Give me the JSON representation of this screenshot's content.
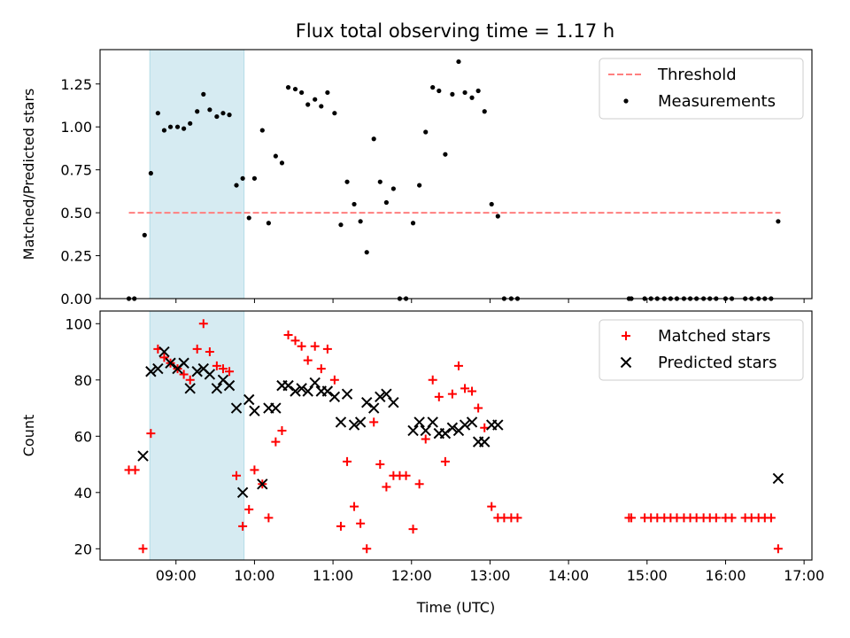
{
  "title": "Flux total observing time = 1.17 h",
  "chart_data": [
    {
      "type": "scatter",
      "ylabel": "Matched/Predicted stars",
      "xlim": [
        8.033,
        17.1
      ],
      "ylim": [
        0,
        1.45
      ],
      "yticks": [
        0.0,
        0.25,
        0.5,
        0.75,
        1.0,
        1.25
      ],
      "ytick_labels": [
        "0.00",
        "0.25",
        "0.50",
        "0.75",
        "1.00",
        "1.25"
      ],
      "highlight_span": {
        "x0": 8.667,
        "x1": 9.867,
        "color": "#add8e6"
      },
      "threshold": {
        "name": "Threshold",
        "y": 0.5,
        "x0": 8.4,
        "x1": 16.7,
        "color": "#ff7f7f",
        "style": "dashed"
      },
      "legend": {
        "position": "top-right",
        "entries": [
          "Threshold",
          "Measurements"
        ]
      },
      "series": [
        {
          "name": "Measurements",
          "marker": "dot",
          "color": "#000000",
          "points": [
            [
              8.4,
              0
            ],
            [
              8.47,
              0
            ],
            [
              8.6,
              0.37
            ],
            [
              8.68,
              0.73
            ],
            [
              8.77,
              1.08
            ],
            [
              8.85,
              0.98
            ],
            [
              8.93,
              1.0
            ],
            [
              9.02,
              1.0
            ],
            [
              9.1,
              0.99
            ],
            [
              9.18,
              1.02
            ],
            [
              9.27,
              1.09
            ],
            [
              9.35,
              1.19
            ],
            [
              9.43,
              1.1
            ],
            [
              9.52,
              1.06
            ],
            [
              9.6,
              1.08
            ],
            [
              9.68,
              1.07
            ],
            [
              9.77,
              0.66
            ],
            [
              9.85,
              0.7
            ],
            [
              9.93,
              0.47
            ],
            [
              10.0,
              0.7
            ],
            [
              10.1,
              0.98
            ],
            [
              10.18,
              0.44
            ],
            [
              10.27,
              0.83
            ],
            [
              10.35,
              0.79
            ],
            [
              10.43,
              1.23
            ],
            [
              10.52,
              1.22
            ],
            [
              10.6,
              1.2
            ],
            [
              10.68,
              1.13
            ],
            [
              10.77,
              1.16
            ],
            [
              10.85,
              1.12
            ],
            [
              10.93,
              1.2
            ],
            [
              11.02,
              1.08
            ],
            [
              11.1,
              0.43
            ],
            [
              11.18,
              0.68
            ],
            [
              11.27,
              0.55
            ],
            [
              11.35,
              0.45
            ],
            [
              11.43,
              0.27
            ],
            [
              11.52,
              0.93
            ],
            [
              11.6,
              0.68
            ],
            [
              11.68,
              0.56
            ],
            [
              11.77,
              0.64
            ],
            [
              11.85,
              0
            ],
            [
              11.93,
              0
            ],
            [
              12.02,
              0.44
            ],
            [
              12.1,
              0.66
            ],
            [
              12.18,
              0.97
            ],
            [
              12.27,
              1.23
            ],
            [
              12.35,
              1.21
            ],
            [
              12.43,
              0.84
            ],
            [
              12.52,
              1.19
            ],
            [
              12.6,
              1.38
            ],
            [
              12.68,
              1.2
            ],
            [
              12.77,
              1.17
            ],
            [
              12.85,
              1.21
            ],
            [
              12.93,
              1.09
            ],
            [
              13.02,
              0.55
            ],
            [
              13.1,
              0.48
            ],
            [
              13.18,
              0
            ],
            [
              13.27,
              0
            ],
            [
              13.35,
              0
            ],
            [
              14.77,
              0
            ],
            [
              14.8,
              0
            ],
            [
              14.97,
              0
            ],
            [
              15.05,
              0
            ],
            [
              15.13,
              0
            ],
            [
              15.22,
              0
            ],
            [
              15.3,
              0
            ],
            [
              15.38,
              0
            ],
            [
              15.47,
              0
            ],
            [
              15.55,
              0
            ],
            [
              15.63,
              0
            ],
            [
              15.72,
              0
            ],
            [
              15.8,
              0
            ],
            [
              15.88,
              0
            ],
            [
              16.0,
              0
            ],
            [
              16.08,
              0
            ],
            [
              16.25,
              0
            ],
            [
              16.33,
              0
            ],
            [
              16.42,
              0
            ],
            [
              16.5,
              0
            ],
            [
              16.58,
              0
            ],
            [
              16.67,
              0.45
            ]
          ]
        }
      ]
    },
    {
      "type": "scatter",
      "xlabel": "Time (UTC)",
      "ylabel": "Count",
      "xlim": [
        8.033,
        17.1
      ],
      "ylim": [
        16,
        104.5
      ],
      "xticks": [
        9,
        10,
        11,
        12,
        13,
        14,
        15,
        16,
        17
      ],
      "xtick_labels": [
        "09:00",
        "10:00",
        "11:00",
        "12:00",
        "13:00",
        "14:00",
        "15:00",
        "16:00",
        "17:00"
      ],
      "yticks": [
        20,
        40,
        60,
        80,
        100
      ],
      "ytick_labels": [
        "20",
        "40",
        "60",
        "80",
        "100"
      ],
      "highlight_span": {
        "x0": 8.667,
        "x1": 9.867,
        "color": "#add8e6"
      },
      "legend": {
        "position": "top-right",
        "entries": [
          "Matched stars",
          "Predicted stars"
        ]
      },
      "series": [
        {
          "name": "Matched stars",
          "marker": "plus",
          "color": "#ff0000",
          "points": [
            [
              8.4,
              48
            ],
            [
              8.48,
              48
            ],
            [
              8.58,
              20
            ],
            [
              8.68,
              61
            ],
            [
              8.77,
              91
            ],
            [
              8.85,
              88
            ],
            [
              8.93,
              86
            ],
            [
              9.02,
              84
            ],
            [
              9.1,
              82
            ],
            [
              9.18,
              80
            ],
            [
              9.27,
              91
            ],
            [
              9.35,
              100
            ],
            [
              9.43,
              90
            ],
            [
              9.52,
              85
            ],
            [
              9.6,
              84
            ],
            [
              9.68,
              83
            ],
            [
              9.77,
              46
            ],
            [
              9.85,
              28
            ],
            [
              9.93,
              34
            ],
            [
              10.0,
              48
            ],
            [
              10.1,
              43
            ],
            [
              10.18,
              31
            ],
            [
              10.27,
              58
            ],
            [
              10.35,
              62
            ],
            [
              10.43,
              96
            ],
            [
              10.52,
              94
            ],
            [
              10.6,
              92
            ],
            [
              10.68,
              87
            ],
            [
              10.77,
              92
            ],
            [
              10.85,
              84
            ],
            [
              10.93,
              91
            ],
            [
              11.02,
              80
            ],
            [
              11.1,
              28
            ],
            [
              11.18,
              51
            ],
            [
              11.27,
              35
            ],
            [
              11.35,
              29
            ],
            [
              11.43,
              20
            ],
            [
              11.52,
              65
            ],
            [
              11.6,
              50
            ],
            [
              11.68,
              42
            ],
            [
              11.77,
              46
            ],
            [
              11.85,
              46
            ],
            [
              11.93,
              46
            ],
            [
              12.02,
              27
            ],
            [
              12.1,
              43
            ],
            [
              12.18,
              59
            ],
            [
              12.27,
              80
            ],
            [
              12.35,
              74
            ],
            [
              12.43,
              51
            ],
            [
              12.52,
              75
            ],
            [
              12.6,
              85
            ],
            [
              12.68,
              77
            ],
            [
              12.77,
              76
            ],
            [
              12.85,
              70
            ],
            [
              12.93,
              63
            ],
            [
              13.02,
              35
            ],
            [
              13.1,
              31
            ],
            [
              13.18,
              31
            ],
            [
              13.27,
              31
            ],
            [
              13.35,
              31
            ],
            [
              14.77,
              31
            ],
            [
              14.8,
              31
            ],
            [
              14.97,
              31
            ],
            [
              15.05,
              31
            ],
            [
              15.13,
              31
            ],
            [
              15.22,
              31
            ],
            [
              15.3,
              31
            ],
            [
              15.38,
              31
            ],
            [
              15.47,
              31
            ],
            [
              15.55,
              31
            ],
            [
              15.63,
              31
            ],
            [
              15.72,
              31
            ],
            [
              15.8,
              31
            ],
            [
              15.88,
              31
            ],
            [
              16.0,
              31
            ],
            [
              16.08,
              31
            ],
            [
              16.25,
              31
            ],
            [
              16.33,
              31
            ],
            [
              16.42,
              31
            ],
            [
              16.5,
              31
            ],
            [
              16.58,
              31
            ],
            [
              16.67,
              20
            ]
          ]
        },
        {
          "name": "Predicted stars",
          "marker": "x",
          "color": "#000000",
          "points": [
            [
              8.58,
              53
            ],
            [
              8.68,
              83
            ],
            [
              8.77,
              84
            ],
            [
              8.85,
              90
            ],
            [
              8.93,
              86
            ],
            [
              9.02,
              84
            ],
            [
              9.1,
              86
            ],
            [
              9.18,
              77
            ],
            [
              9.27,
              83
            ],
            [
              9.35,
              84
            ],
            [
              9.43,
              82
            ],
            [
              9.52,
              77
            ],
            [
              9.6,
              80
            ],
            [
              9.68,
              78
            ],
            [
              9.77,
              70
            ],
            [
              9.85,
              40
            ],
            [
              9.93,
              73
            ],
            [
              10.0,
              69
            ],
            [
              10.1,
              43
            ],
            [
              10.18,
              70
            ],
            [
              10.27,
              70
            ],
            [
              10.35,
              78
            ],
            [
              10.43,
              78
            ],
            [
              10.52,
              76
            ],
            [
              10.6,
              77
            ],
            [
              10.68,
              76
            ],
            [
              10.77,
              79
            ],
            [
              10.85,
              76
            ],
            [
              10.93,
              76
            ],
            [
              11.02,
              74
            ],
            [
              11.1,
              65
            ],
            [
              11.18,
              75
            ],
            [
              11.27,
              64
            ],
            [
              11.35,
              65
            ],
            [
              11.43,
              72
            ],
            [
              11.52,
              70
            ],
            [
              11.6,
              74
            ],
            [
              11.68,
              75
            ],
            [
              11.77,
              72
            ],
            [
              12.02,
              62
            ],
            [
              12.1,
              65
            ],
            [
              12.18,
              62
            ],
            [
              12.27,
              65
            ],
            [
              12.35,
              61
            ],
            [
              12.43,
              61
            ],
            [
              12.52,
              63
            ],
            [
              12.6,
              62
            ],
            [
              12.68,
              64
            ],
            [
              12.77,
              65
            ],
            [
              12.85,
              58
            ],
            [
              12.93,
              58
            ],
            [
              13.02,
              64
            ],
            [
              13.1,
              64
            ],
            [
              16.67,
              45
            ]
          ]
        }
      ]
    }
  ]
}
